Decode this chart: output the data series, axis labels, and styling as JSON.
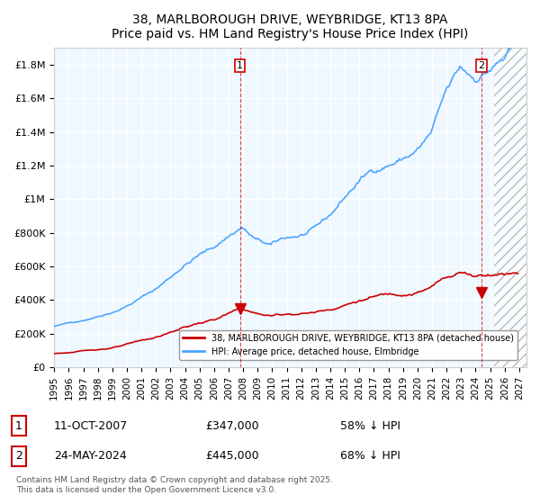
{
  "title1": "38, MARLBOROUGH DRIVE, WEYBRIDGE, KT13 8PA",
  "title2": "Price paid vs. HM Land Registry's House Price Index (HPI)",
  "xlabel": "",
  "ylabel": "",
  "ylim": [
    0,
    1900000
  ],
  "xlim_start": 1995.0,
  "xlim_end": 2027.5,
  "yticks": [
    0,
    200000,
    400000,
    600000,
    800000,
    1000000,
    1200000,
    1400000,
    1600000,
    1800000
  ],
  "ytick_labels": [
    "£0",
    "£200K",
    "£400K",
    "£600K",
    "£800K",
    "£1M",
    "£1.2M",
    "£1.4M",
    "£1.6M",
    "£1.8M"
  ],
  "xticks": [
    1995,
    1996,
    1997,
    1998,
    1999,
    2000,
    2001,
    2002,
    2003,
    2004,
    2005,
    2006,
    2007,
    2008,
    2009,
    2010,
    2011,
    2012,
    2013,
    2014,
    2015,
    2016,
    2017,
    2018,
    2019,
    2020,
    2021,
    2022,
    2023,
    2024,
    2025,
    2026,
    2027
  ],
  "hpi_color": "#4da6ff",
  "price_color": "#cc0000",
  "vline1_x": 2007.78,
  "vline2_x": 2024.39,
  "marker1_x": 2007.78,
  "marker1_y": 347000,
  "marker2_x": 2024.39,
  "marker2_y": 445000,
  "legend_line1": "38, MARLBOROUGH DRIVE, WEYBRIDGE, KT13 8PA (detached house)",
  "legend_line2": "HPI: Average price, detached house, Elmbridge",
  "note1_num": "1",
  "note1_date": "11-OCT-2007",
  "note1_price": "£347,000",
  "note1_hpi": "58% ↓ HPI",
  "note2_num": "2",
  "note2_date": "24-MAY-2024",
  "note2_price": "£445,000",
  "note2_hpi": "68% ↓ HPI",
  "footer": "Contains HM Land Registry data © Crown copyright and database right 2025.\nThis data is licensed under the Open Government Licence v3.0.",
  "bg_color": "#f0f8ff",
  "plot_bg": "#f0f8ff",
  "hatch_color": "#cccccc",
  "future_start": 2025.25
}
